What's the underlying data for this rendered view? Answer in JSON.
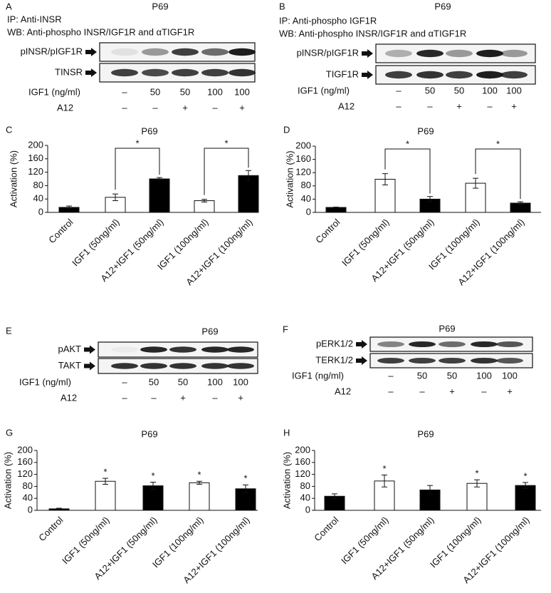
{
  "blots": [
    {
      "panel": "A",
      "title": "P69",
      "notes": [
        "IP: Anti-INSR",
        "WB: Anti-phospho INSR/IGF1R and αTIGF1R"
      ],
      "rows": [
        "pINSR/pIGF1R",
        "TINSR"
      ],
      "conditions": [
        {
          "label": "IGF1 (ng/ml)",
          "values": [
            "–",
            "50",
            "50",
            "100",
            "100"
          ]
        },
        {
          "label": "A12",
          "values": [
            "–",
            "–",
            "+",
            "–",
            "+"
          ]
        }
      ]
    },
    {
      "panel": "B",
      "title": "P69",
      "notes": [
        "IP: Anti-phospho IGF1R",
        "WB: Anti-phospho INSR/IGF1R and αTIGF1R"
      ],
      "rows": [
        "pINSR/pIGF1R",
        "TIGF1R"
      ],
      "conditions": [
        {
          "label": "IGF1 (ng/ml)",
          "values": [
            "–",
            "50",
            "50",
            "100",
            "100"
          ]
        },
        {
          "label": "A12",
          "values": [
            "–",
            "–",
            "+",
            "–",
            "+"
          ]
        }
      ]
    },
    {
      "panel": "E",
      "title": "P69",
      "notes": [],
      "rows": [
        "pAKT",
        "TAKT"
      ],
      "conditions": [
        {
          "label": "IGF1 (ng/ml)",
          "values": [
            "–",
            "50",
            "50",
            "100",
            "100"
          ]
        },
        {
          "label": "A12",
          "values": [
            "–",
            "–",
            "+",
            "–",
            "+"
          ]
        }
      ]
    },
    {
      "panel": "F",
      "title": "P69",
      "notes": [],
      "rows": [
        "pERK1/2",
        "TERK1/2"
      ],
      "conditions": [
        {
          "label": "IGF1 (ng/ml)",
          "values": [
            "–",
            "50",
            "50",
            "100",
            "100"
          ]
        },
        {
          "label": "A12",
          "values": [
            "–",
            "–",
            "+",
            "–",
            "+"
          ]
        }
      ]
    }
  ],
  "chart_data": [
    {
      "type": "bar",
      "panel": "C",
      "title": "P69",
      "y_label": "Activation (%)",
      "categories": [
        "Control",
        "IGF1 (50ng/ml)",
        "A12+IGF1 (50ng/ml)",
        "IGF1 (100ng/ml)",
        "A12+IGF1 (100ng/ml)"
      ],
      "values": [
        15,
        45,
        100,
        35,
        110
      ],
      "errors": [
        4,
        10,
        4,
        4,
        15
      ],
      "colors": [
        "#000000",
        "#ffffff",
        "#000000",
        "#ffffff",
        "#000000"
      ],
      "ylim": [
        0,
        200
      ],
      "yticks": [
        0,
        40,
        80,
        120,
        160,
        200
      ],
      "significance": [
        {
          "label": "*",
          "categories": [
            "IGF1 (50ng/ml)",
            "A12+IGF1 (50ng/ml)"
          ]
        },
        {
          "label": "*",
          "categories": [
            "IGF1 (100ng/ml)",
            "A12+IGF1 (100ng/ml)"
          ]
        }
      ]
    },
    {
      "type": "bar",
      "panel": "D",
      "title": "P69",
      "y_label": "Activation (%)",
      "categories": [
        "Control",
        "IGF1 (50ng/ml)",
        "A12+IGF1 (50ng/ml)",
        "IGF1 (100ng/ml)",
        "A12+IGF1 (100ng/ml)"
      ],
      "values": [
        15,
        100,
        40,
        88,
        28
      ],
      "errors": [
        1,
        17,
        8,
        15,
        4
      ],
      "colors": [
        "#000000",
        "#ffffff",
        "#000000",
        "#ffffff",
        "#000000"
      ],
      "ylim": [
        0,
        200
      ],
      "yticks": [
        0,
        40,
        80,
        120,
        160,
        200
      ],
      "significance": [
        {
          "label": "*",
          "categories": [
            "IGF1 (50ng/ml)",
            "A12+IGF1 (50ng/ml)"
          ]
        },
        {
          "label": "*",
          "categories": [
            "IGF1 (100ng/ml)",
            "A12+IGF1 (100ng/ml)"
          ]
        }
      ]
    },
    {
      "type": "bar",
      "panel": "G",
      "title": "P69",
      "y_label": "Activation (%)",
      "categories": [
        "Control",
        "IGF1 (50ng/ml)",
        "A12+IGF1 (50ng/ml)",
        "IGF1 (100ng/ml)",
        "A12+IGF1 (100ng/ml)"
      ],
      "values": [
        5,
        97,
        82,
        92,
        72
      ],
      "errors": [
        2,
        10,
        12,
        5,
        13
      ],
      "colors": [
        "#000000",
        "#ffffff",
        "#000000",
        "#ffffff",
        "#000000"
      ],
      "ylim": [
        0,
        200
      ],
      "yticks": [
        0,
        40,
        80,
        120,
        160,
        200
      ],
      "significance": [
        {
          "label": "*",
          "categories": [
            "IGF1 (50ng/ml)"
          ]
        },
        {
          "label": "*",
          "categories": [
            "A12+IGF1 (50ng/ml)"
          ]
        },
        {
          "label": "*",
          "categories": [
            "IGF1 (100ng/ml)"
          ]
        },
        {
          "label": "*",
          "categories": [
            "A12+IGF1 (100ng/ml)"
          ]
        }
      ]
    },
    {
      "type": "bar",
      "panel": "H",
      "title": "P69",
      "y_label": "Activation (%)",
      "categories": [
        "Control",
        "IGF1 (50ng/ml)",
        "A12+IGF1 (50ng/ml)",
        "IGF1 (100ng/ml)",
        "A12+IGF1 (100ng/ml)"
      ],
      "values": [
        47,
        98,
        68,
        90,
        83
      ],
      "errors": [
        8,
        20,
        15,
        12,
        10
      ],
      "colors": [
        "#000000",
        "#ffffff",
        "#000000",
        "#ffffff",
        "#000000"
      ],
      "ylim": [
        0,
        200
      ],
      "yticks": [
        0,
        40,
        80,
        120,
        160,
        200
      ],
      "significance": [
        {
          "label": "*",
          "categories": [
            "IGF1 (50ng/ml)"
          ]
        },
        {
          "label": "*",
          "categories": [
            "IGF1 (100ng/ml)"
          ]
        },
        {
          "label": "*",
          "categories": [
            "A12+IGF1 (100ng/ml)"
          ]
        }
      ]
    }
  ]
}
